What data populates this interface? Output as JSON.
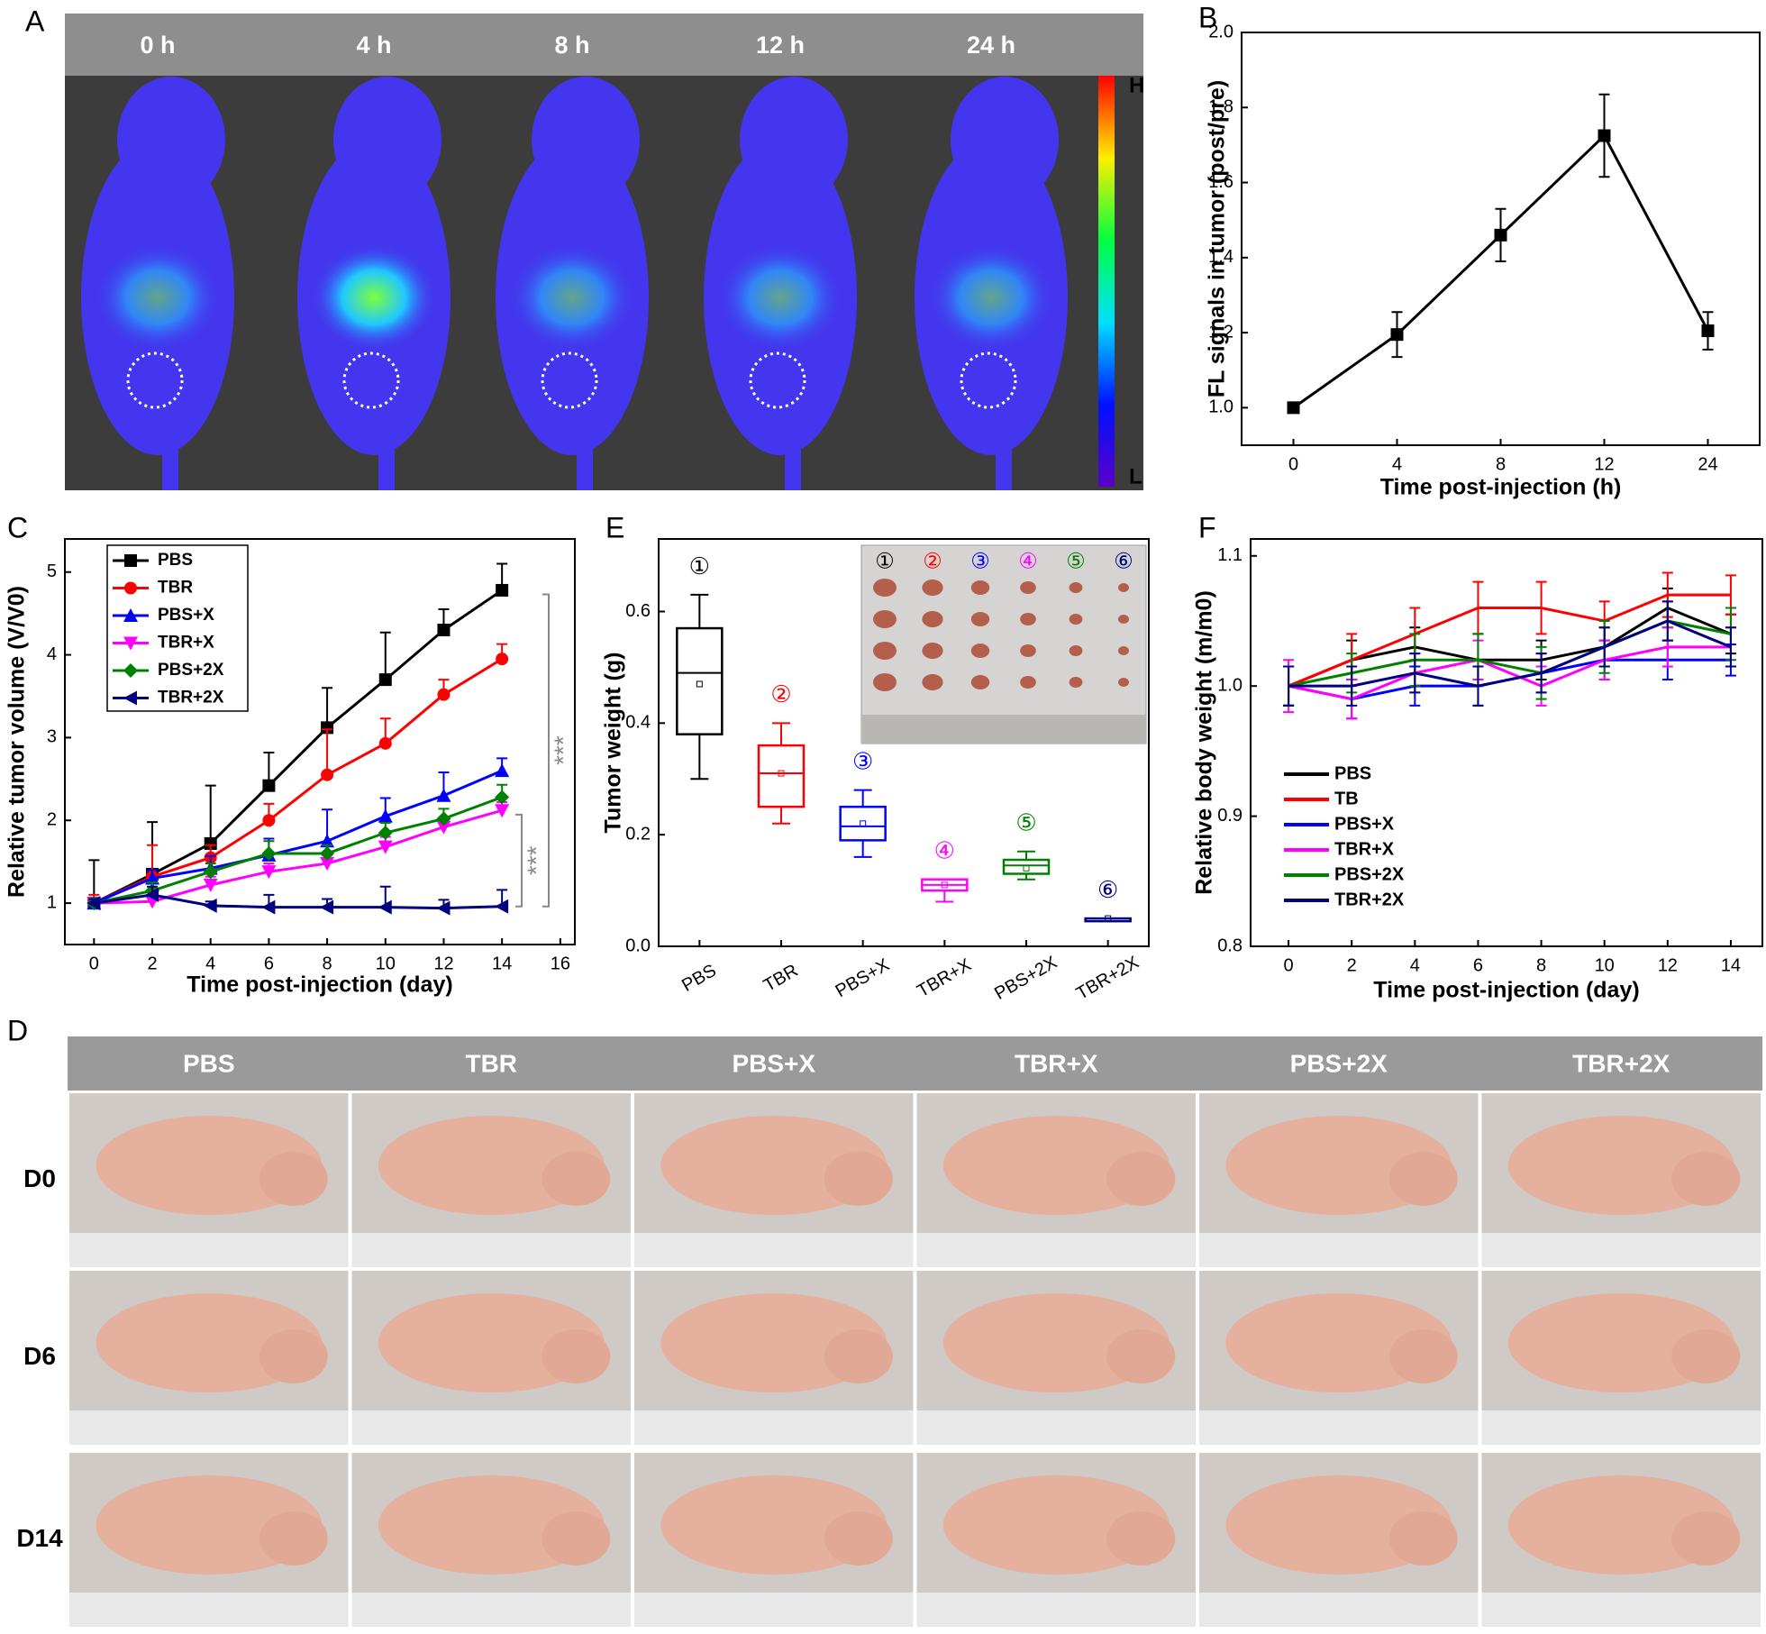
{
  "panel_a": {
    "panel": "A",
    "time_labels": [
      "0 h",
      "4 h",
      "8 h",
      "12 h",
      "24 h"
    ],
    "colorbar_labels": [
      "H",
      "L"
    ]
  },
  "chart_data": [
    {
      "type": "line",
      "panel": "B",
      "xlabel": "Time post-injection (h)",
      "ylabel": "FL signals in tumor (post/pre)",
      "categories": [
        "0",
        "4",
        "8",
        "12",
        "24"
      ],
      "ylim": [
        0.9,
        2.0
      ],
      "yticks": [
        {
          "value": 1,
          "label": "1.0"
        },
        1.2,
        1.4,
        1.6,
        1.8,
        {
          "value": 2,
          "label": "2.0"
        }
      ],
      "error_bars": "both",
      "series": [
        {
          "color": "#000000",
          "marker": "square",
          "values": [
            1.0,
            1.195,
            1.46,
            1.725,
            1.205
          ],
          "errors": [
            0,
            0.06,
            0.07,
            0.11,
            0.05
          ]
        }
      ]
    },
    {
      "type": "line",
      "panel": "C",
      "xlabel": "Time post-injection (day)",
      "ylabel": "Relative tumor volume (V/V0)",
      "x": [
        0,
        2,
        4,
        6,
        8,
        10,
        12,
        14
      ],
      "xlim": [
        -1,
        16.5
      ],
      "xticks": [
        0,
        2,
        4,
        6,
        8,
        10,
        12,
        14,
        16
      ],
      "ylim": [
        0.5,
        5.4
      ],
      "yticks": [
        1,
        2,
        3,
        4,
        5
      ],
      "error_bars": "upper",
      "legend": "upper left",
      "annotations": [
        "***",
        "***"
      ],
      "series": [
        {
          "name": "PBS",
          "color": "#000000",
          "marker": "square",
          "values": [
            1,
            1.35,
            1.72,
            2.42,
            3.12,
            3.7,
            4.3,
            4.78
          ],
          "errors": [
            0.52,
            0.63,
            0.7,
            0.4,
            0.48,
            0.57,
            0.25,
            0.32
          ]
        },
        {
          "name": "TBR",
          "color": "#ff0000",
          "marker": "circle",
          "values": [
            1,
            1.32,
            1.55,
            2.0,
            2.55,
            2.93,
            3.52,
            3.95
          ],
          "errors": [
            0.1,
            0.38,
            0.15,
            0.2,
            0.55,
            0.3,
            0.18,
            0.18
          ]
        },
        {
          "name": "PBS+X",
          "color": "#0000ff",
          "marker": "triangle-up",
          "values": [
            1,
            1.3,
            1.42,
            1.58,
            1.75,
            2.05,
            2.3,
            2.6
          ],
          "errors": [
            0.05,
            0.1,
            0.15,
            0.2,
            0.38,
            0.22,
            0.28,
            0.15
          ]
        },
        {
          "name": "TBR+X",
          "color": "#ff00ff",
          "marker": "triangle-down",
          "values": [
            1,
            1.02,
            1.22,
            1.38,
            1.48,
            1.68,
            1.92,
            2.12
          ],
          "errors": [
            0.05,
            0.05,
            0.1,
            0.1,
            0.1,
            0.12,
            0.1,
            0.1
          ]
        },
        {
          "name": "PBS+2X",
          "color": "#008000",
          "marker": "diamond",
          "values": [
            1,
            1.15,
            1.38,
            1.6,
            1.6,
            1.85,
            2.02,
            2.28
          ],
          "errors": [
            0.05,
            0.1,
            0.1,
            0.15,
            0.1,
            0.12,
            0.12,
            0.15
          ]
        },
        {
          "name": "TBR+2X",
          "color": "#000080",
          "marker": "triangle-left",
          "values": [
            1,
            1.1,
            0.97,
            0.95,
            0.95,
            0.95,
            0.94,
            0.96
          ],
          "errors": [
            0.05,
            0.1,
            0.05,
            0.15,
            0.1,
            0.25,
            0.1,
            0.2
          ]
        }
      ]
    },
    {
      "type": "box",
      "panel": "E",
      "ylabel": "Tumor weight (g)",
      "categories": [
        "PBS",
        "TBR",
        "PBS+X",
        "TBR+X",
        "PBS+2X",
        "TBR+2X"
      ],
      "colors": [
        "#000000",
        "#ff0000",
        "#0000ff",
        "#ff00ff",
        "#008000",
        "#000080"
      ],
      "box_labels": [
        "①",
        "②",
        "③",
        "④",
        "⑤",
        "⑥"
      ],
      "inset_labels": [
        "①",
        "②",
        "③",
        "④",
        "⑤",
        "⑥"
      ],
      "ylim": [
        0,
        0.73
      ],
      "yticks": [
        {
          "value": 0,
          "label": "0.0"
        },
        0.2,
        0.4,
        0.6
      ],
      "boxes": [
        {
          "min": 0.3,
          "q1": 0.38,
          "median": 0.49,
          "q3": 0.57,
          "max": 0.63,
          "mean": 0.47
        },
        {
          "min": 0.22,
          "q1": 0.25,
          "median": 0.31,
          "q3": 0.36,
          "max": 0.4,
          "mean": 0.31
        },
        {
          "min": 0.16,
          "q1": 0.19,
          "median": 0.215,
          "q3": 0.25,
          "max": 0.28,
          "mean": 0.22
        },
        {
          "min": 0.08,
          "q1": 0.1,
          "median": 0.11,
          "q3": 0.12,
          "max": 0.12,
          "mean": 0.11
        },
        {
          "min": 0.12,
          "q1": 0.13,
          "median": 0.145,
          "q3": 0.155,
          "max": 0.17,
          "mean": 0.14
        },
        {
          "min": 0.045,
          "q1": 0.045,
          "median": 0.05,
          "q3": 0.05,
          "max": 0.05,
          "mean": 0.05
        }
      ]
    },
    {
      "type": "line",
      "panel": "F",
      "xlabel": "Time post-injection (day)",
      "ylabel": "Relative body weight (m/m0)",
      "x": [
        0,
        2,
        4,
        6,
        8,
        10,
        12,
        14
      ],
      "xlim": [
        -1.2,
        15
      ],
      "xticks": [
        0,
        2,
        4,
        6,
        8,
        10,
        12,
        14
      ],
      "ylim": [
        0.8,
        1.113
      ],
      "yticks": [
        0.8,
        0.9,
        {
          "value": 1,
          "label": "1.0"
        },
        1.1
      ],
      "error_bars": "both",
      "legend": "center left",
      "series": [
        {
          "name": "PBS",
          "color": "#000000",
          "values": [
            1,
            1.02,
            1.03,
            1.02,
            1.02,
            1.03,
            1.06,
            1.04
          ],
          "errors": [
            0.015,
            0.015,
            0.015,
            0.02,
            0.015,
            0.015,
            0.015,
            0.015
          ]
        },
        {
          "name": "TB",
          "color": "#ff0000",
          "values": [
            1,
            1.02,
            1.04,
            1.06,
            1.06,
            1.05,
            1.07,
            1.07
          ],
          "errors": [
            0.015,
            0.02,
            0.02,
            0.02,
            0.02,
            0.015,
            0.017,
            0.015
          ]
        },
        {
          "name": "PBS+X",
          "color": "#0000ff",
          "values": [
            1,
            0.99,
            1.0,
            1.0,
            1.01,
            1.02,
            1.02,
            1.02
          ],
          "errors": [
            0.015,
            0.015,
            0.015,
            0.015,
            0.015,
            0.015,
            0.015,
            0.012
          ]
        },
        {
          "name": "TBR+X",
          "color": "#ff00ff",
          "values": [
            1,
            0.99,
            1.01,
            1.02,
            1.0,
            1.02,
            1.03,
            1.03
          ],
          "errors": [
            0.02,
            0.015,
            0.015,
            0.015,
            0.015,
            0.015,
            0.015,
            0.015
          ]
        },
        {
          "name": "PBS+2X",
          "color": "#008000",
          "values": [
            1,
            1.01,
            1.02,
            1.02,
            1.01,
            1.03,
            1.05,
            1.04
          ],
          "errors": [
            0.015,
            0.015,
            0.02,
            0.02,
            0.02,
            0.02,
            0.015,
            0.02
          ]
        },
        {
          "name": "TBR+2X",
          "color": "#000080",
          "values": [
            1,
            1.0,
            1.01,
            1.0,
            1.01,
            1.03,
            1.05,
            1.03
          ],
          "errors": [
            0.015,
            0.015,
            0.015,
            0.015,
            0.015,
            0.015,
            0.015,
            0.015
          ]
        }
      ]
    }
  ],
  "panel_d": {
    "panel": "D",
    "groups": [
      "PBS",
      "TBR",
      "PBS+X",
      "TBR+X",
      "PBS+2X",
      "TBR+2X"
    ],
    "days": [
      "D0",
      "D6",
      "D14"
    ]
  }
}
